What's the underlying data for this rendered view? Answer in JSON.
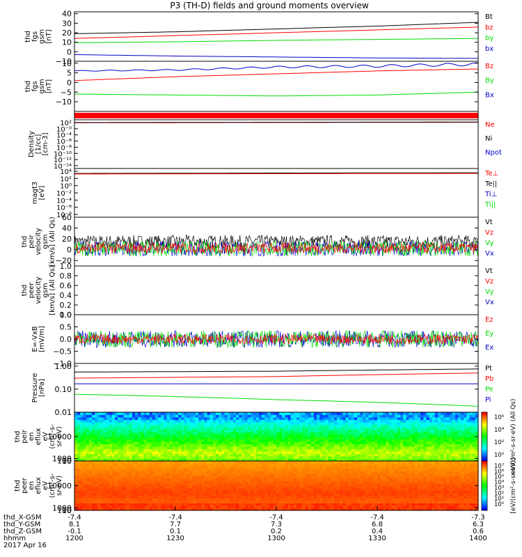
{
  "title": "P3 (TH-D) fields and ground moments overview",
  "colors": {
    "black": "#000000",
    "red": "#ff0000",
    "green": "#00dd00",
    "blue": "#0000cc"
  },
  "chart_data": [
    {
      "type": "line",
      "id": "fgs_gsm",
      "ylabel_lines": [
        "thd",
        "fgs",
        "gsm",
        "[nT]"
      ],
      "ylim": [
        -10,
        42
      ],
      "yticks": [
        -10,
        0,
        10,
        20,
        30,
        40
      ],
      "legend": [
        {
          "name": "Bt",
          "color": "black"
        },
        {
          "name": "bz",
          "color": "red"
        },
        {
          "name": "by",
          "color": "green"
        },
        {
          "name": "bx",
          "color": "blue"
        }
      ],
      "series": [
        {
          "name": "Bt",
          "color": "black",
          "x": [
            0,
            0.25,
            0.5,
            0.75,
            1
          ],
          "y": [
            19,
            21,
            24,
            27,
            31
          ]
        },
        {
          "name": "bz",
          "color": "red",
          "x": [
            0,
            0.25,
            0.5,
            0.75,
            1
          ],
          "y": [
            14,
            17,
            20,
            23,
            26
          ]
        },
        {
          "name": "by",
          "color": "green",
          "x": [
            0,
            0.25,
            0.5,
            0.75,
            1
          ],
          "y": [
            9.5,
            10.5,
            12,
            13,
            14
          ]
        },
        {
          "name": "bx",
          "color": "blue",
          "x": [
            0,
            0.25,
            0.5,
            0.75,
            1
          ],
          "y": [
            -3,
            -4.5,
            -5.5,
            -6.5,
            -7
          ]
        }
      ]
    },
    {
      "type": "line",
      "id": "fgs_gsm2",
      "ylabel_lines": [
        "thd",
        "fgs",
        "gsm",
        "[nT]"
      ],
      "ylim": [
        -15,
        11
      ],
      "yticks": [
        -10,
        -5,
        0,
        5,
        10
      ],
      "legend": [
        {
          "name": "Bz",
          "color": "red"
        },
        {
          "name": "By",
          "color": "green"
        },
        {
          "name": "Bx",
          "color": "blue"
        }
      ],
      "series": [
        {
          "name": "Bx",
          "color": "blue",
          "x": [
            0,
            0.25,
            0.5,
            0.75,
            1
          ],
          "y": [
            6,
            6.5,
            8,
            8.5,
            9.5
          ],
          "wave": 0.6
        },
        {
          "name": "Bz",
          "color": "red",
          "x": [
            0,
            0.25,
            0.5,
            0.75,
            1
          ],
          "y": [
            1,
            3,
            4.5,
            6,
            7
          ]
        },
        {
          "name": "By",
          "color": "green",
          "x": [
            0,
            0.25,
            0.5,
            0.75,
            1
          ],
          "y": [
            -6,
            -6.5,
            -7,
            -6.5,
            -5
          ]
        }
      ]
    },
    {
      "type": "band",
      "id": "flag_bar",
      "color": "red"
    },
    {
      "type": "line",
      "id": "density",
      "log": true,
      "ylabel_lines": [
        "Density",
        "[1/cc]",
        "[cm-3]"
      ],
      "ylim": [
        1e-15,
        10
      ],
      "yticks_labels": [
        "10²",
        "10⁻⁰",
        "10⁻⁴",
        "10⁻⁶",
        "10⁻⁸",
        "10⁻¹⁰",
        "10⁻¹²",
        "10⁻¹⁴"
      ],
      "legend": [
        {
          "name": "Ne",
          "color": "red"
        },
        {
          "name": "Ni",
          "color": "black"
        },
        {
          "name": "Npot",
          "color": "blue"
        }
      ],
      "series": [
        {
          "name": "Ne",
          "color": "red",
          "x": [
            0,
            1
          ],
          "y": [
            1,
            1.5
          ]
        },
        {
          "name": "Ni",
          "color": "black",
          "x": [
            0,
            1
          ],
          "y": [
            1.2,
            1.8
          ]
        }
      ]
    },
    {
      "type": "line",
      "id": "temperature",
      "log": true,
      "ylabel_lines": [
        "magt3",
        "[eV]"
      ],
      "ylim": [
        1e-10,
        100000.0
      ],
      "yticks_labels": [
        "10⁴",
        "10²",
        "10⁰",
        "10⁻²",
        "10⁻⁴",
        "10⁻⁶",
        "10⁻⁸"
      ],
      "legend": [
        {
          "name": "Te⊥",
          "color": "red"
        },
        {
          "name": "Te||",
          "color": "black"
        },
        {
          "name": "Ti⊥",
          "color": "blue"
        },
        {
          "name": "Ti||",
          "color": "green"
        }
      ],
      "series": [
        {
          "name": "Te",
          "color": "black",
          "x": [
            0,
            1
          ],
          "y": [
            3000,
            5000
          ]
        },
        {
          "name": "Te⊥",
          "color": "red",
          "x": [
            0,
            1
          ],
          "y": [
            2000,
            3000
          ]
        }
      ]
    },
    {
      "type": "line",
      "id": "peir_velocity",
      "ylabel_lines": [
        "thd",
        "peir",
        "velocity",
        "gsm",
        "[km/s] (All Qs)"
      ],
      "ylim": [
        -30,
        60
      ],
      "yticks": [
        -20,
        0,
        20,
        40,
        60
      ],
      "legend": [
        {
          "name": "Vt",
          "color": "black"
        },
        {
          "name": "Vz",
          "color": "red"
        },
        {
          "name": "Vy",
          "color": "green"
        },
        {
          "name": "Vx",
          "color": "blue"
        }
      ],
      "noise": [
        {
          "name": "Vt",
          "color": "black",
          "center": 15,
          "amp": 12
        },
        {
          "name": "Vx",
          "color": "blue",
          "center": 2,
          "amp": 14
        },
        {
          "name": "Vy",
          "color": "green",
          "center": 2,
          "amp": 14
        },
        {
          "name": "Vz",
          "color": "red",
          "center": 3,
          "amp": 10
        }
      ]
    },
    {
      "type": "line",
      "id": "peer_velocity",
      "ylabel_lines": [
        "thd",
        "peer",
        "velocity",
        "gsm",
        "[km/s] (All Qs)"
      ],
      "ylim": [
        0,
        1
      ],
      "yticks": [
        0,
        0.2,
        0.4,
        0.6,
        0.8,
        1.0
      ],
      "ytick_labels": [
        "0.0",
        "0.2",
        "0.4",
        "0.6",
        "0.8",
        "1.0"
      ],
      "legend": [
        {
          "name": "Vt",
          "color": "black"
        },
        {
          "name": "Vz",
          "color": "red"
        },
        {
          "name": "Vy",
          "color": "green"
        },
        {
          "name": "Vx",
          "color": "blue"
        }
      ]
    },
    {
      "type": "line",
      "id": "e_field",
      "ylabel_lines": [
        "E=-VxB",
        "[mV/m]"
      ],
      "ylim": [
        -1,
        1
      ],
      "yticks": [
        -1,
        -0.5,
        0,
        0.5,
        1
      ],
      "ytick_labels": [
        "−1.0",
        "−0.5",
        "0.0",
        "0.5",
        "1.0"
      ],
      "legend": [
        {
          "name": "Ez",
          "color": "red"
        },
        {
          "name": "Ey",
          "color": "green"
        },
        {
          "name": "Ex",
          "color": "blue"
        }
      ],
      "noise": [
        {
          "name": "Ex",
          "color": "blue",
          "center": 0,
          "amp": 0.35
        },
        {
          "name": "Ey",
          "color": "green",
          "center": 0,
          "amp": 0.35
        },
        {
          "name": "Ez",
          "color": "red",
          "center": 0,
          "amp": 0.2
        }
      ]
    },
    {
      "type": "line",
      "id": "pressure",
      "log": true,
      "ylabel_lines": [
        "Pressure",
        "[nPa]"
      ],
      "ylim": [
        0.01,
        1.3
      ],
      "yticks": [
        0.01,
        0.1,
        1
      ],
      "ytick_labels": [
        "0.01",
        "0.10",
        "1.00"
      ],
      "legend": [
        {
          "name": "Pt",
          "color": "black"
        },
        {
          "name": "Pb",
          "color": "red"
        },
        {
          "name": "Pe",
          "color": "green"
        },
        {
          "name": "Pi",
          "color": "blue"
        }
      ],
      "series": [
        {
          "name": "Pt",
          "color": "black",
          "x": [
            0,
            0.5,
            1
          ],
          "y": [
            0.55,
            0.6,
            0.75
          ]
        },
        {
          "name": "Pb",
          "color": "red",
          "x": [
            0,
            0.5,
            1
          ],
          "y": [
            0.3,
            0.35,
            0.5
          ]
        },
        {
          "name": "Pi",
          "color": "blue",
          "x": [
            0,
            0.5,
            1
          ],
          "y": [
            0.17,
            0.17,
            0.17
          ]
        },
        {
          "name": "Pe",
          "color": "green",
          "x": [
            0,
            0.5,
            1
          ],
          "y": [
            0.06,
            0.035,
            0.018
          ]
        }
      ]
    },
    {
      "type": "heatmap",
      "id": "peir_spectrogram",
      "ylabel_lines": [
        "thd",
        "peir",
        "en",
        "eflux",
        "eV",
        "(cm²-s-",
        "sr-eV)"
      ],
      "ylim": [
        8,
        20000
      ],
      "yticks": [
        10,
        100,
        1000,
        10000
      ],
      "ytick_labels": [
        "10",
        "100",
        "1000",
        "10000"
      ],
      "colorbar_labels": [
        "10⁶",
        "10⁴",
        "10²",
        "10⁰"
      ],
      "colorbar_title": "eV/(cm²-s-sr-eV) (All Qs)"
    },
    {
      "type": "heatmap",
      "id": "peer_spectrogram",
      "ylabel_lines": [
        "thd",
        "peer",
        "en",
        "eflux",
        "eV",
        "(cm²-s-",
        "sr-eV)"
      ],
      "ylim": [
        8,
        20000
      ],
      "yticks": [
        10,
        100,
        1000,
        10000
      ],
      "ytick_labels": [
        "10",
        "100",
        "1000",
        "10000"
      ],
      "colorbar_labels": [
        "10⁷",
        "10⁶",
        "10⁵",
        "10⁴",
        "10³",
        "10²",
        "10¹",
        "10⁰"
      ],
      "colorbar_title": "[eV/(cm²-s-sr-eV)]"
    }
  ],
  "xaxis": {
    "rows": [
      {
        "label": "thd_X-GSM",
        "values": [
          "-7.4",
          "-7.4",
          "-7.4",
          "-7.4",
          "-7.3"
        ]
      },
      {
        "label": "thd_Y-GSM",
        "values": [
          "8.1",
          "7.7",
          "7.3",
          "6.8",
          "6.3"
        ]
      },
      {
        "label": "thd_Z-GSM",
        "values": [
          "-0.1",
          "0.1",
          "0.2",
          "0.4",
          "0.6"
        ]
      },
      {
        "label": "hhmm",
        "values": [
          "1200",
          "1230",
          "1300",
          "1330",
          "1400"
        ]
      }
    ],
    "date": "2017 Apr 16"
  }
}
